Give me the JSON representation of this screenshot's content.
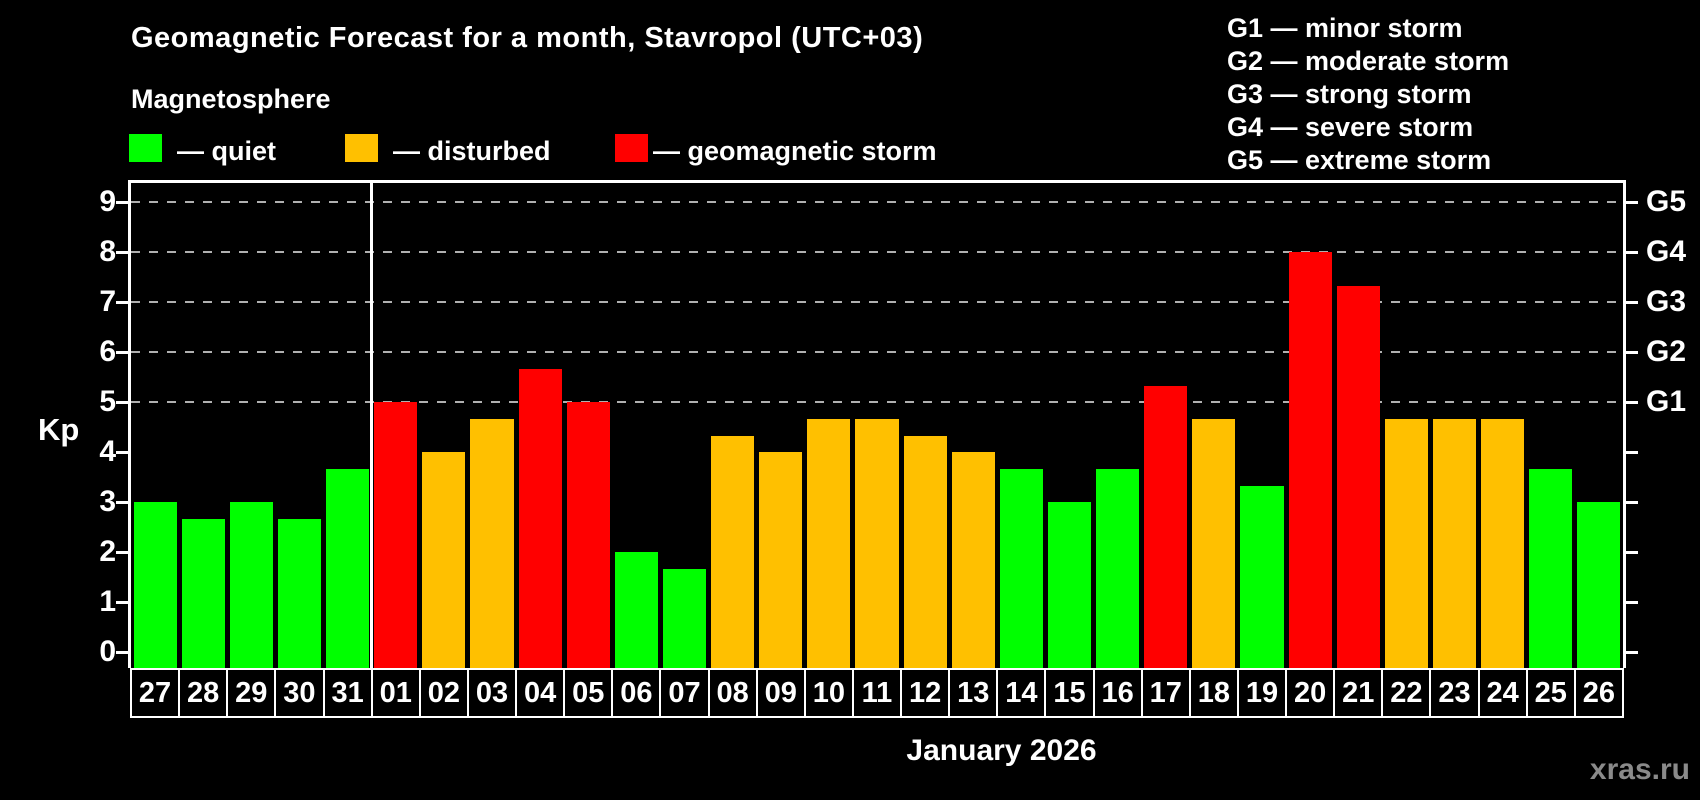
{
  "header": {
    "title": "Geomagnetic Forecast for a month, Stavropol (UTC+03)",
    "subtitle": "Magnetosphere"
  },
  "legend": {
    "items": [
      {
        "key": "quiet",
        "label": "— quiet"
      },
      {
        "key": "disturbed",
        "label": "— disturbed"
      },
      {
        "key": "storm",
        "label": "— geomagnetic storm"
      }
    ]
  },
  "g_legend": {
    "items": [
      "G1 — minor storm",
      "G2 — moderate storm",
      "G3 — strong storm",
      "G4 — severe storm",
      "G5 — extreme storm"
    ]
  },
  "y_axis": {
    "label": "Kp"
  },
  "x_axis": {
    "month_label": "January 2026"
  },
  "watermark": "xras.ru",
  "colors": {
    "background": "#000000",
    "text": "#ffffff",
    "quiet": "#00ff00",
    "disturbed": "#ffc000",
    "storm": "#ff0000",
    "grid": "#b0b0b0",
    "axis": "#ffffff",
    "watermark": "#8a8a8a"
  },
  "chart_data": {
    "type": "bar",
    "title": "Geomagnetic Forecast for a month, Stavropol (UTC+03)",
    "subtitle": "Magnetosphere",
    "xlabel": "January 2026",
    "ylabel": "Kp",
    "ylim": [
      0,
      9.4
    ],
    "grid": true,
    "gridlines_at_kp": [
      5,
      6,
      7,
      8,
      9
    ],
    "y_ticks": [
      0,
      1,
      2,
      3,
      4,
      5,
      6,
      7,
      8,
      9
    ],
    "right_axis_labels": [
      {
        "label": "G1",
        "kp": 5
      },
      {
        "label": "G2",
        "kp": 6
      },
      {
        "label": "G3",
        "kp": 7
      },
      {
        "label": "G4",
        "kp": 8
      },
      {
        "label": "G5",
        "kp": 9
      }
    ],
    "legend_position": "top-left",
    "categories": [
      "27",
      "28",
      "29",
      "30",
      "31",
      "01",
      "02",
      "03",
      "04",
      "05",
      "06",
      "07",
      "08",
      "09",
      "10",
      "11",
      "12",
      "13",
      "14",
      "15",
      "16",
      "17",
      "18",
      "19",
      "20",
      "21",
      "22",
      "23",
      "24",
      "25",
      "26"
    ],
    "values": [
      3,
      2.67,
      3,
      2.67,
      3.67,
      5,
      4,
      4.67,
      5.67,
      5,
      2,
      1.67,
      4.33,
      4,
      4.67,
      4.67,
      4.33,
      4,
      3.67,
      3,
      3.67,
      5.33,
      4.67,
      3.33,
      8,
      7.33,
      4.67,
      4.67,
      4.67,
      3.67,
      3
    ],
    "levels": [
      "quiet",
      "quiet",
      "quiet",
      "quiet",
      "quiet",
      "storm",
      "disturbed",
      "disturbed",
      "storm",
      "storm",
      "quiet",
      "quiet",
      "disturbed",
      "disturbed",
      "disturbed",
      "disturbed",
      "disturbed",
      "disturbed",
      "quiet",
      "quiet",
      "quiet",
      "storm",
      "disturbed",
      "quiet",
      "storm",
      "storm",
      "disturbed",
      "disturbed",
      "disturbed",
      "quiet",
      "quiet"
    ],
    "month_separator_after_index": 4
  }
}
